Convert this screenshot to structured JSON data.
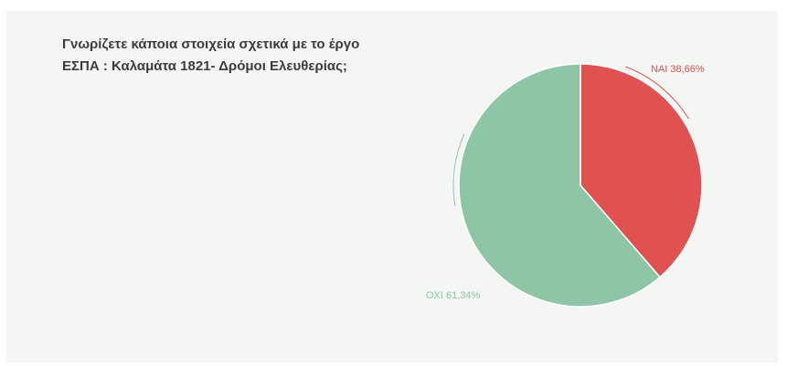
{
  "question": "Γνωρίζετε κάποια στοιχεία σχετικά με το έργο ΕΣΠΑ : Καλαμάτα 1821- Δρόμοι Ελευθερίας;",
  "colors": {
    "yes": "#e05252",
    "no": "#8ec5a6",
    "background": "#f3f6f3"
  },
  "chart_data": {
    "type": "pie",
    "title": "Γνωρίζετε κάποια στοιχεία σχετικά με το έργο ΕΣΠΑ : Καλαμάτα 1821- Δρόμοι Ελευθερίας;",
    "slices": [
      {
        "label": "ΝΑΙ 38,66%",
        "value": 38.66,
        "color": "#e05252"
      },
      {
        "label": "ΟΧΙ 61,34%",
        "value": 61.34,
        "color": "#8ec5a6"
      }
    ]
  }
}
